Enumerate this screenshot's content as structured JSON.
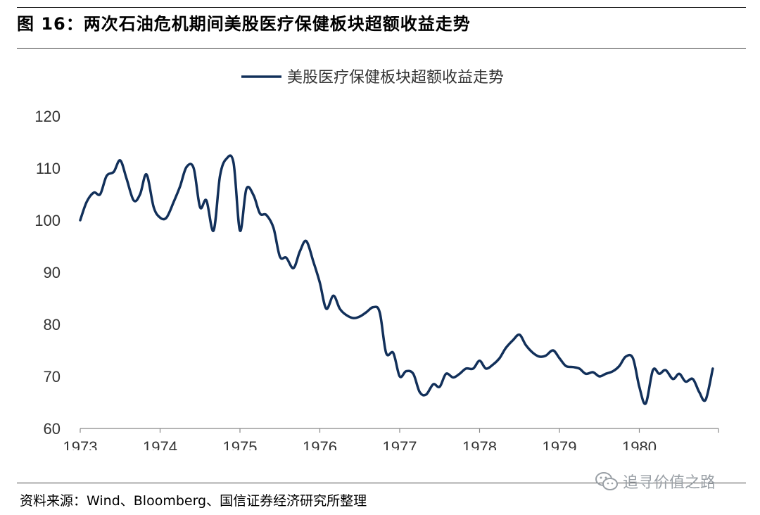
{
  "figure": {
    "title": "图 16：两次石油危机期间美股医疗保健板块超额收益走势",
    "source": "资料来源：Wind、Bloomberg、国信证券经济研究所整理",
    "watermark": "追寻价值之路"
  },
  "chart_data": {
    "type": "line",
    "title": "",
    "xlabel": "",
    "ylabel": "",
    "xlim": [
      1973,
      1981
    ],
    "ylim": [
      60,
      120
    ],
    "yticks": [
      60,
      70,
      80,
      90,
      100,
      110,
      120
    ],
    "xticks": [
      "1973",
      "1974",
      "1975",
      "1976",
      "1977",
      "1978",
      "1979",
      "1980"
    ],
    "grid": false,
    "legend_position": "top-center",
    "line_color": "#12305a",
    "series": [
      {
        "name": "美股医疗保健板块超额收益走势",
        "x": [
          1973.0,
          1973.08,
          1973.17,
          1973.25,
          1973.33,
          1973.42,
          1973.5,
          1973.58,
          1973.67,
          1973.75,
          1973.83,
          1973.92,
          1974.0,
          1974.08,
          1974.17,
          1974.25,
          1974.33,
          1974.42,
          1974.5,
          1974.58,
          1974.67,
          1974.75,
          1974.83,
          1974.92,
          1975.0,
          1975.08,
          1975.17,
          1975.25,
          1975.33,
          1975.42,
          1975.5,
          1975.58,
          1975.67,
          1975.75,
          1975.83,
          1975.92,
          1976.0,
          1976.08,
          1976.17,
          1976.25,
          1976.33,
          1976.42,
          1976.5,
          1976.58,
          1976.67,
          1976.75,
          1976.83,
          1976.92,
          1977.0,
          1977.08,
          1977.17,
          1977.25,
          1977.33,
          1977.42,
          1977.5,
          1977.58,
          1977.67,
          1977.75,
          1977.83,
          1977.92,
          1978.0,
          1978.08,
          1978.17,
          1978.25,
          1978.33,
          1978.42,
          1978.5,
          1978.58,
          1978.67,
          1978.75,
          1978.83,
          1978.92,
          1979.0,
          1979.08,
          1979.17,
          1979.25,
          1979.33,
          1979.42,
          1979.5,
          1979.58,
          1979.67,
          1979.75,
          1979.83,
          1979.92,
          1980.0,
          1980.08,
          1980.17,
          1980.25,
          1980.33,
          1980.42,
          1980.5,
          1980.58,
          1980.67,
          1980.75,
          1980.83,
          1980.92
        ],
        "values": [
          100,
          103.5,
          105.3,
          105.0,
          108.5,
          109.3,
          111.5,
          108.0,
          103.8,
          105.0,
          108.8,
          102.5,
          100.5,
          100.5,
          103.5,
          106.5,
          110.2,
          110.0,
          102.5,
          103.8,
          98.0,
          108.5,
          111.8,
          111.0,
          98.0,
          106.0,
          104.8,
          101.3,
          101.0,
          98.5,
          93.0,
          92.8,
          90.8,
          94.0,
          96.0,
          92.0,
          88.0,
          83.0,
          85.5,
          83.0,
          81.8,
          81.2,
          81.5,
          82.3,
          83.3,
          82.3,
          74.5,
          74.5,
          70.0,
          71.0,
          70.5,
          67.0,
          66.5,
          68.5,
          68.0,
          70.5,
          69.8,
          70.5,
          71.5,
          71.5,
          73.0,
          71.5,
          72.3,
          73.5,
          75.5,
          77.0,
          78.0,
          76.0,
          74.5,
          73.8,
          74.0,
          75.0,
          73.5,
          72.0,
          71.8,
          71.5,
          70.5,
          70.8,
          70.0,
          70.5,
          71.0,
          72.0,
          73.8,
          73.5,
          68.0,
          64.8,
          71.2,
          70.5,
          71.2,
          69.5,
          70.5,
          69.0,
          69.5,
          67.0,
          65.5,
          71.5
        ]
      }
    ]
  }
}
